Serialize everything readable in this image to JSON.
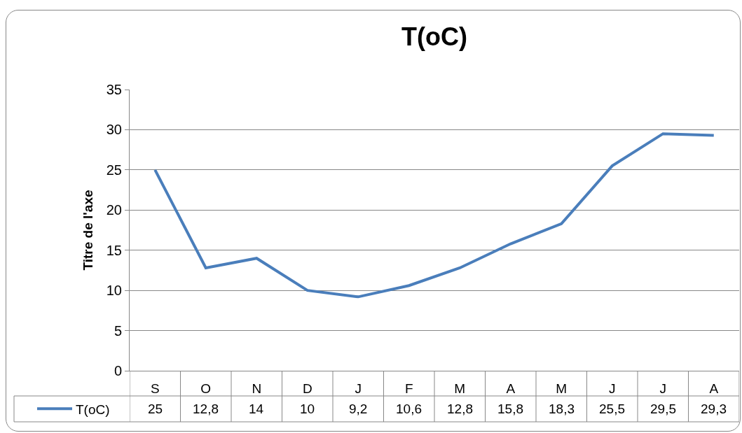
{
  "chart_data": {
    "type": "line",
    "title": "T(oC)",
    "ylabel": "Titre de l'axe",
    "categories": [
      "S",
      "O",
      "N",
      "D",
      "J",
      "F",
      "M",
      "A",
      "M",
      "J",
      "J",
      "A"
    ],
    "series": [
      {
        "name": "T(oC)",
        "color": "#4a7ebb",
        "values": [
          25,
          12.8,
          14,
          10,
          9.2,
          10.6,
          12.8,
          15.8,
          18.3,
          25.5,
          29.5,
          29.3
        ],
        "value_labels": [
          "25",
          "12,8",
          "14",
          "10",
          "9,2",
          "10,6",
          "12,8",
          "15,8",
          "18,3",
          "25,5",
          "29,5",
          "29,3"
        ]
      }
    ],
    "ylim": [
      0,
      35
    ],
    "yticks": [
      0,
      5,
      10,
      15,
      20,
      25,
      30,
      35
    ],
    "grid": "y",
    "legend": "bottom left",
    "marker": "none",
    "line_style": "solid"
  }
}
